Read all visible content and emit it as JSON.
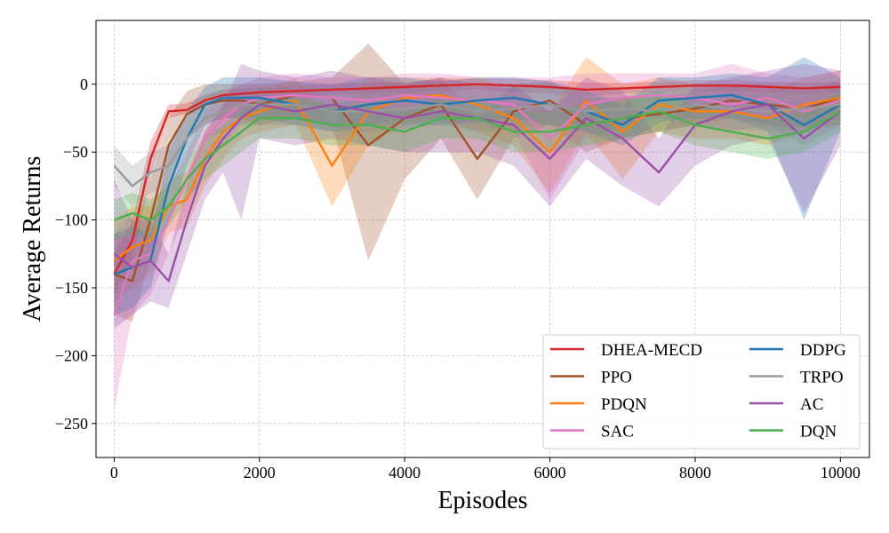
{
  "chart_data": {
    "type": "line",
    "title": "",
    "xlabel": "Episodes",
    "ylabel": "Average Returns",
    "xlim": [
      -250,
      10400
    ],
    "ylim": [
      -275,
      47
    ],
    "xticks": [
      0,
      2000,
      4000,
      6000,
      8000,
      10000
    ],
    "yticks": [
      -250,
      -200,
      -150,
      -100,
      -50,
      0
    ],
    "xtick_labels": [
      "0",
      "2000",
      "4000",
      "6000",
      "8000",
      "10000"
    ],
    "ytick_labels": [
      "−250",
      "−200",
      "−150",
      "−100",
      "−50",
      "0"
    ],
    "grid": true,
    "legend_position": "lower-right",
    "x": [
      0,
      250,
      500,
      750,
      1000,
      1250,
      1500,
      1750,
      2000,
      2500,
      3000,
      3500,
      4000,
      4500,
      5000,
      5500,
      6000,
      6500,
      7000,
      7500,
      8000,
      8500,
      9000,
      9500,
      10000
    ],
    "series": [
      {
        "name": "DHEA-MECD",
        "color": "#d62728",
        "values": [
          -140,
          -115,
          -55,
          -20,
          -19,
          -12,
          -8,
          -7,
          -6,
          -5,
          -4,
          -3,
          -2,
          -1,
          0,
          -1,
          -2,
          -4,
          -3,
          -2,
          -1,
          -1,
          -2,
          -3,
          -2
        ],
        "lower": [
          -155,
          -130,
          -68,
          -25,
          -22,
          -16,
          -12,
          -11,
          -10,
          -9,
          -8,
          -7,
          -6,
          -5,
          -4,
          -6,
          -7,
          -9,
          -7,
          -6,
          -5,
          -5,
          -6,
          -7,
          -6
        ],
        "upper": [
          -125,
          -100,
          -42,
          -15,
          -14,
          -8,
          -4,
          -3,
          -2,
          -1,
          0,
          1,
          2,
          3,
          4,
          4,
          3,
          1,
          1,
          2,
          3,
          3,
          2,
          1,
          2
        ]
      },
      {
        "name": "PPO",
        "color": "#a0522d",
        "values": [
          -140,
          -145,
          -100,
          -45,
          -22,
          -15,
          -12,
          -12,
          -15,
          -8,
          -10,
          -45,
          -25,
          -15,
          -55,
          -20,
          -12,
          -30,
          -25,
          -22,
          -18,
          -12,
          -15,
          -18,
          -10
        ],
        "lower": [
          -170,
          -175,
          -130,
          -70,
          -40,
          -30,
          -25,
          -25,
          -30,
          -25,
          -30,
          -130,
          -70,
          -40,
          -85,
          -40,
          -30,
          -50,
          -40,
          -35,
          -30,
          -25,
          -30,
          -32,
          -25
        ],
        "upper": [
          -110,
          -115,
          -70,
          -25,
          -5,
          0,
          0,
          0,
          0,
          2,
          5,
          30,
          0,
          5,
          -25,
          0,
          2,
          -10,
          -10,
          -8,
          -5,
          0,
          0,
          -5,
          2
        ]
      },
      {
        "name": "PDQN",
        "color": "#ff7f0e",
        "values": [
          -130,
          -120,
          -115,
          -90,
          -85,
          -55,
          -35,
          -25,
          -20,
          -12,
          -60,
          -20,
          -10,
          -8,
          -15,
          -25,
          -50,
          -12,
          -35,
          -15,
          -20,
          -20,
          -25,
          -15,
          -10
        ],
        "lower": [
          -160,
          -150,
          -140,
          -110,
          -105,
          -75,
          -55,
          -40,
          -35,
          -30,
          -90,
          -45,
          -30,
          -25,
          -35,
          -45,
          -80,
          -35,
          -70,
          -35,
          -40,
          -40,
          -45,
          -35,
          -30
        ],
        "upper": [
          -100,
          -90,
          -90,
          -70,
          -65,
          -35,
          -15,
          -10,
          -5,
          5,
          -30,
          5,
          5,
          5,
          5,
          -5,
          -20,
          20,
          0,
          5,
          0,
          0,
          -5,
          5,
          10
        ]
      },
      {
        "name": "SAC",
        "color": "#e377c2",
        "values": [
          -170,
          -130,
          -125,
          -100,
          -70,
          -40,
          -25,
          -15,
          -10,
          -8,
          -10,
          -12,
          -8,
          -10,
          -12,
          -15,
          -40,
          -15,
          -10,
          -8,
          -10,
          -15,
          -10,
          -20,
          -12
        ],
        "lower": [
          -240,
          -170,
          -155,
          -125,
          -95,
          -60,
          -45,
          -30,
          -25,
          -25,
          -30,
          -30,
          -25,
          -28,
          -30,
          -35,
          -85,
          -40,
          -30,
          -25,
          -28,
          -35,
          -30,
          -45,
          -30
        ],
        "upper": [
          -110,
          -95,
          -100,
          -75,
          -50,
          -20,
          -8,
          0,
          5,
          8,
          5,
          5,
          8,
          8,
          5,
          5,
          5,
          8,
          8,
          8,
          8,
          15,
          8,
          5,
          10
        ]
      },
      {
        "name": "DDPG",
        "color": "#1f77b4",
        "values": [
          -140,
          -135,
          -130,
          -75,
          -40,
          -15,
          -10,
          -10,
          -10,
          -15,
          -20,
          -15,
          -12,
          -15,
          -12,
          -10,
          -15,
          -20,
          -30,
          -12,
          -10,
          -8,
          -15,
          -30,
          -15
        ],
        "lower": [
          -170,
          -165,
          -150,
          -100,
          -60,
          -30,
          -25,
          -25,
          -25,
          -30,
          -35,
          -30,
          -30,
          -30,
          -28,
          -25,
          -30,
          -35,
          -45,
          -28,
          -25,
          -25,
          -35,
          -100,
          -35
        ],
        "upper": [
          -110,
          -105,
          -110,
          -50,
          -20,
          -2,
          5,
          5,
          5,
          2,
          0,
          5,
          5,
          2,
          5,
          5,
          2,
          -5,
          -15,
          5,
          5,
          8,
          5,
          20,
          5
        ]
      },
      {
        "name": "TRPO",
        "color": "#999999",
        "values": [
          -60,
          -75,
          -65,
          -60,
          -40,
          -25,
          -20,
          -15,
          -15,
          -15,
          -20,
          -20,
          -18,
          -15,
          -20,
          -18,
          -15,
          -20,
          -18,
          -20,
          -15,
          -18,
          -20,
          -18,
          -15
        ],
        "lower": [
          -75,
          -90,
          -80,
          -75,
          -55,
          -40,
          -35,
          -30,
          -30,
          -30,
          -35,
          -35,
          -33,
          -30,
          -35,
          -33,
          -30,
          -35,
          -33,
          -35,
          -30,
          -33,
          -35,
          -33,
          -30
        ],
        "upper": [
          -45,
          -60,
          -50,
          -45,
          -25,
          -10,
          -5,
          0,
          0,
          0,
          -5,
          -5,
          -3,
          0,
          -5,
          -3,
          0,
          -5,
          -3,
          -5,
          0,
          -3,
          -5,
          -3,
          0
        ]
      },
      {
        "name": "AC",
        "color": "#9b4fa8",
        "values": [
          -125,
          -135,
          -130,
          -145,
          -100,
          -60,
          -40,
          -25,
          -15,
          -20,
          -15,
          -20,
          -25,
          -20,
          -25,
          -30,
          -55,
          -25,
          -40,
          -65,
          -30,
          -20,
          -15,
          -40,
          -20
        ],
        "lower": [
          -180,
          -170,
          -160,
          -165,
          -125,
          -85,
          -65,
          -100,
          -40,
          -45,
          -40,
          -45,
          -50,
          -50,
          -50,
          -60,
          -90,
          -55,
          -75,
          -90,
          -60,
          -45,
          -40,
          -95,
          -45
        ],
        "upper": [
          -70,
          -100,
          -100,
          -125,
          -75,
          -35,
          -15,
          15,
          10,
          5,
          10,
          5,
          0,
          5,
          0,
          0,
          -20,
          5,
          -5,
          -40,
          0,
          5,
          10,
          15,
          10
        ]
      },
      {
        "name": "DQN",
        "color": "#4caf50",
        "values": [
          -100,
          -95,
          -100,
          -90,
          -70,
          -55,
          -45,
          -35,
          -25,
          -25,
          -30,
          -30,
          -35,
          -25,
          -25,
          -35,
          -35,
          -30,
          -25,
          -20,
          -30,
          -35,
          -40,
          -35,
          -20
        ],
        "lower": [
          -115,
          -110,
          -115,
          -105,
          -85,
          -70,
          -60,
          -50,
          -40,
          -40,
          -45,
          -45,
          -50,
          -40,
          -40,
          -50,
          -50,
          -45,
          -40,
          -35,
          -45,
          -50,
          -55,
          -50,
          -35
        ],
        "upper": [
          -85,
          -80,
          -85,
          -75,
          -55,
          -40,
          -30,
          -20,
          -10,
          -10,
          -15,
          -15,
          -20,
          -10,
          -10,
          -20,
          -20,
          -15,
          -10,
          -5,
          -15,
          -20,
          -25,
          -20,
          -5
        ]
      }
    ]
  }
}
